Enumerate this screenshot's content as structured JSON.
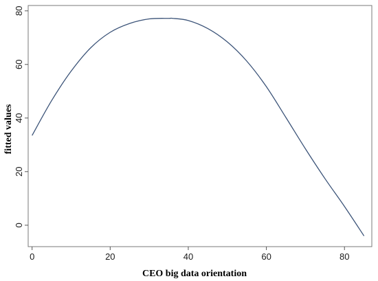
{
  "chart_data": {
    "type": "line",
    "title": "",
    "xlabel": "CEO big data orientation",
    "ylabel": "fitted values",
    "xlim": [
      -1,
      87
    ],
    "ylim": [
      -8,
      82
    ],
    "x_ticks": [
      0,
      20,
      40,
      60,
      80
    ],
    "y_ticks": [
      0,
      20,
      40,
      60,
      80
    ],
    "grid": false,
    "line_color": "#3b5378",
    "series": [
      {
        "x": [
          0,
          5,
          10,
          15,
          20,
          25,
          30,
          35,
          36,
          40,
          45,
          50,
          55,
          60,
          65,
          70,
          75,
          80,
          85
        ],
        "y": [
          33.5,
          46.5,
          57.5,
          66.2,
          72.0,
          75.3,
          77.0,
          77.2,
          77.2,
          76.4,
          73.4,
          68.4,
          61.2,
          51.7,
          40.2,
          28.5,
          17.4,
          7.0,
          -4.0
        ]
      }
    ]
  }
}
